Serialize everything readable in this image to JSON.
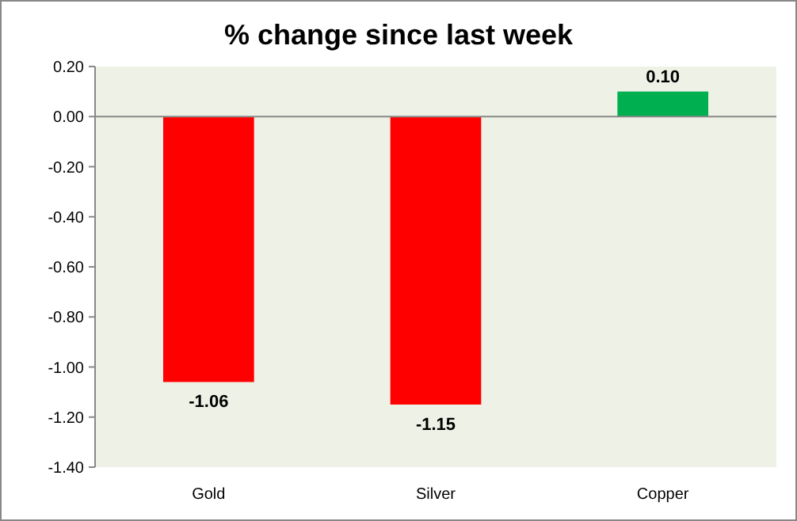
{
  "chart_data": {
    "type": "bar",
    "title": "% change since last week",
    "categories": [
      "Gold",
      "Silver",
      "Copper"
    ],
    "values": [
      -1.06,
      -1.15,
      0.1
    ],
    "colors": [
      "#ff0000",
      "#ff0000",
      "#00b050"
    ],
    "value_labels": [
      "-1.06",
      "-1.15",
      "0.10"
    ],
    "ylim": [
      -1.4,
      0.2
    ],
    "yticks": [
      {
        "value": 0.2,
        "label": "0.20"
      },
      {
        "value": 0,
        "label": "0.00"
      },
      {
        "value": -0.2,
        "label": "-0.20"
      },
      {
        "value": -0.4,
        "label": "-0.40"
      },
      {
        "value": -0.6,
        "label": "-0.60"
      },
      {
        "value": -0.8,
        "label": "-0.80"
      },
      {
        "value": -1,
        "label": "-1.00"
      },
      {
        "value": -1.2,
        "label": "-1.20"
      },
      {
        "value": -1.4,
        "label": "-1.40"
      }
    ]
  }
}
